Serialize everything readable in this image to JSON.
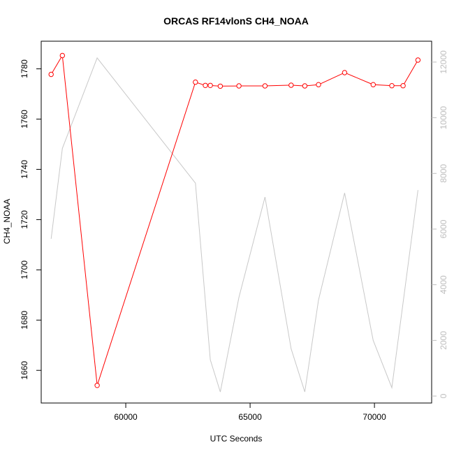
{
  "chart_data": {
    "type": "line",
    "title": "ORCAS RF14vlonS CH4_NOAA",
    "xlabel": "UTC Seconds",
    "ylabel": "CH4_NOAA",
    "xlim": [
      56600,
      72300
    ],
    "ylim": [
      1647,
      1791
    ],
    "y2lim": [
      -250,
      12750
    ],
    "x_ticks": [
      60000,
      65000,
      70000
    ],
    "y_ticks": [
      1660,
      1680,
      1700,
      1720,
      1740,
      1760,
      1780
    ],
    "y2_ticks": [
      0,
      2000,
      4000,
      6000,
      8000,
      10000,
      12000
    ],
    "grid": false,
    "colors": {
      "primary": "#ff0000",
      "secondary": "#c8c8c8",
      "axis": "#000000",
      "axis2": "#bdbdbd"
    },
    "series": [
      {
        "axis": "left",
        "marker": "open-circle",
        "x": [
          57000,
          57450,
          58850,
          62800,
          63200,
          63400,
          63800,
          64550,
          65600,
          66650,
          67200,
          67750,
          68800,
          69950,
          70700,
          71150,
          71750
        ],
        "values": [
          1777.8,
          1785.3,
          1654.0,
          1774.7,
          1773.4,
          1773.4,
          1773.1,
          1773.2,
          1773.2,
          1773.5,
          1773.2,
          1773.7,
          1778.5,
          1773.7,
          1773.3,
          1773.3,
          1783.5
        ]
      },
      {
        "axis": "right",
        "marker": "none",
        "x": [
          57000,
          57450,
          58850,
          62800,
          63400,
          63800,
          64550,
          65600,
          66650,
          67200,
          67750,
          68800,
          69950,
          70700,
          71750
        ],
        "values": [
          5650,
          8900,
          12150,
          7650,
          1300,
          150,
          3550,
          7150,
          1700,
          150,
          3450,
          7300,
          2000,
          300,
          7400
        ]
      }
    ]
  }
}
